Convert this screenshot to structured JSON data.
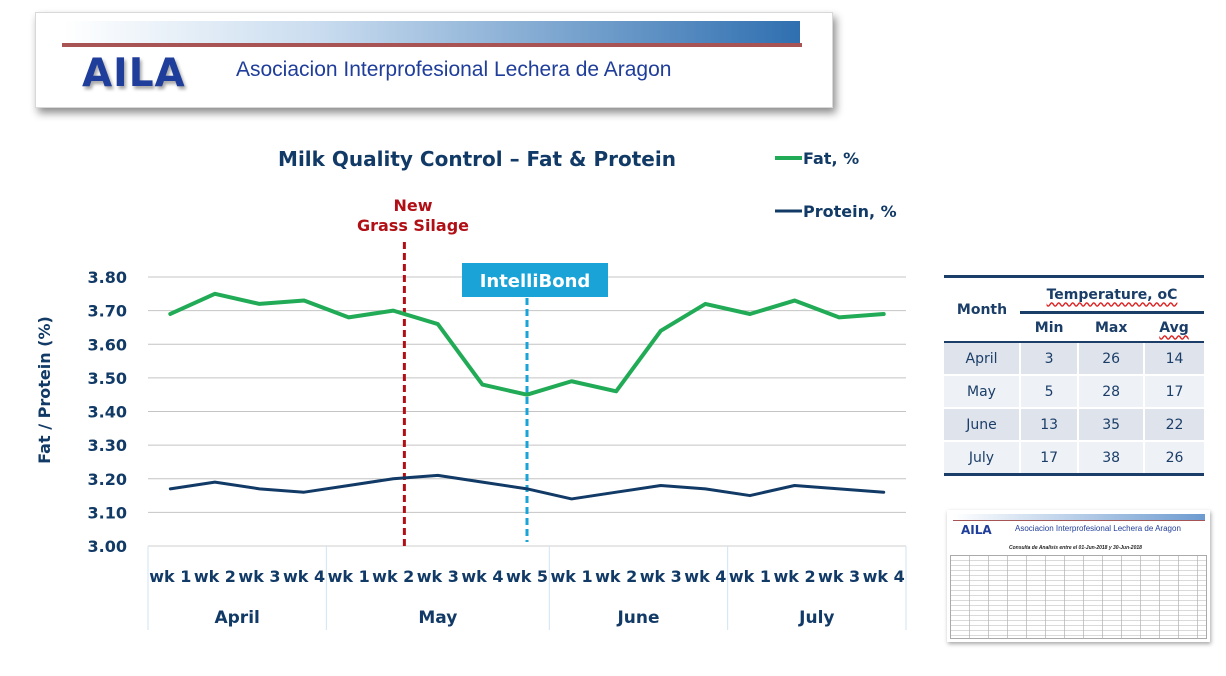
{
  "banner": {
    "logo": "AILA",
    "org_name": "Asociacion Interprofesional Lechera de Aragon"
  },
  "chart_data": {
    "type": "line",
    "title": "Milk Quality Control – Fat & Protein",
    "ylabel": "Fat / Protein (%)",
    "xlabel": "",
    "ylim": [
      3.0,
      3.8
    ],
    "yticks": [
      "3.00",
      "3.10",
      "3.20",
      "3.30",
      "3.40",
      "3.50",
      "3.60",
      "3.70",
      "3.80"
    ],
    "grid": true,
    "legend_position": "top-right",
    "categories": [
      "wk 1",
      "wk 2",
      "wk 3",
      "wk 4",
      "wk 1",
      "wk 2",
      "wk 3",
      "wk 4",
      "wk 5",
      "wk 1",
      "wk 2",
      "wk 3",
      "wk 4",
      "wk 1",
      "wk 2",
      "wk 3",
      "wk 4"
    ],
    "month_groups": [
      {
        "label": "April",
        "weeks": 4
      },
      {
        "label": "May",
        "weeks": 5
      },
      {
        "label": "June",
        "weeks": 4
      },
      {
        "label": "July",
        "weeks": 4
      }
    ],
    "series": [
      {
        "name": "Fat, %",
        "color": "#22ab56",
        "values": [
          3.69,
          3.75,
          3.72,
          3.73,
          3.68,
          3.7,
          3.66,
          3.48,
          3.45,
          3.49,
          3.46,
          3.64,
          3.72,
          3.69,
          3.73,
          3.68,
          3.69
        ]
      },
      {
        "name": "Protein, %",
        "color": "#123a66",
        "values": [
          3.17,
          3.19,
          3.17,
          3.16,
          3.18,
          3.2,
          3.21,
          3.19,
          3.17,
          3.14,
          3.16,
          3.18,
          3.17,
          3.15,
          3.18,
          3.17,
          3.16
        ]
      }
    ],
    "annotations": [
      {
        "text_line1": "New",
        "text_line2": "Grass Silage",
        "color": "#b01015",
        "at_index": 5.5
      },
      {
        "text": "IntelliBond",
        "color": "#1aa3d6",
        "at_index": 8
      }
    ]
  },
  "temperature_table": {
    "month_header": "Month",
    "group_header": "Temperature, oC",
    "columns": [
      "Min",
      "Max",
      "Avg"
    ],
    "rows": [
      {
        "month": "April",
        "min": "3",
        "max": "26",
        "avg": "14"
      },
      {
        "month": "May",
        "min": "5",
        "max": "28",
        "avg": "17"
      },
      {
        "month": "June",
        "min": "13",
        "max": "35",
        "avg": "22"
      },
      {
        "month": "July",
        "min": "17",
        "max": "38",
        "avg": "26"
      }
    ]
  },
  "report_thumbnail": {
    "logo": "AILA",
    "org_name": "Asociacion Interprofesional Lechera de Aragon",
    "subtitle": "Consulta de Analisis entre el 01-Jun-2018 y 30-Jun-2018"
  }
}
